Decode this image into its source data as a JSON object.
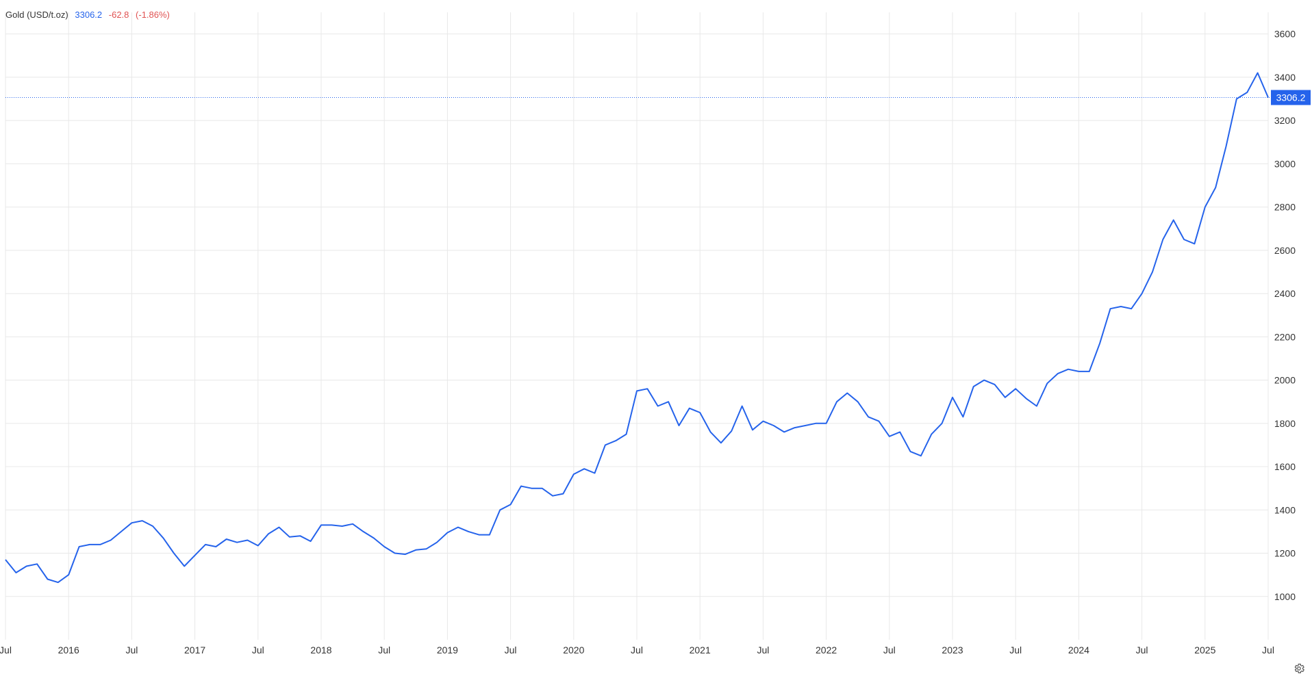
{
  "header": {
    "name": "Gold (USD/t.oz)",
    "price": "3306.2",
    "change": "-62.8",
    "change_pct": "(-1.86%)"
  },
  "colors": {
    "line": "#2563eb",
    "price": "#2563eb",
    "negative": "#e05252",
    "grid": "#e8e8e8",
    "axis_text": "#333333",
    "badge_bg": "#2563eb"
  },
  "icons": {
    "settings": "gear-icon"
  },
  "chart_data": {
    "type": "line",
    "title": "Gold (USD/t.oz)",
    "xlabel": "",
    "ylabel": "",
    "x_range": [
      "2015-07",
      "2025-07"
    ],
    "ylim": [
      800,
      3700
    ],
    "y_ticks": [
      "1000",
      "1200",
      "1400",
      "1600",
      "1800",
      "2000",
      "2200",
      "2400",
      "2600",
      "2800",
      "3000",
      "3200",
      "3400",
      "3600"
    ],
    "x_ticks": [
      {
        "date": "2015-07",
        "label": "Jul"
      },
      {
        "date": "2016-01",
        "label": "2016"
      },
      {
        "date": "2016-07",
        "label": "Jul"
      },
      {
        "date": "2017-01",
        "label": "2017"
      },
      {
        "date": "2017-07",
        "label": "Jul"
      },
      {
        "date": "2018-01",
        "label": "2018"
      },
      {
        "date": "2018-07",
        "label": "Jul"
      },
      {
        "date": "2019-01",
        "label": "2019"
      },
      {
        "date": "2019-07",
        "label": "Jul"
      },
      {
        "date": "2020-01",
        "label": "2020"
      },
      {
        "date": "2020-07",
        "label": "Jul"
      },
      {
        "date": "2021-01",
        "label": "2021"
      },
      {
        "date": "2021-07",
        "label": "Jul"
      },
      {
        "date": "2022-01",
        "label": "2022"
      },
      {
        "date": "2022-07",
        "label": "Jul"
      },
      {
        "date": "2023-01",
        "label": "2023"
      },
      {
        "date": "2023-07",
        "label": "Jul"
      },
      {
        "date": "2024-01",
        "label": "2024"
      },
      {
        "date": "2024-07",
        "label": "Jul"
      },
      {
        "date": "2025-01",
        "label": "2025"
      },
      {
        "date": "2025-07",
        "label": "Jul"
      }
    ],
    "grid": true,
    "last_value": 3306.2,
    "last_value_label": "3306.2",
    "series": [
      {
        "values": [
          [
            "2015-07",
            1170
          ],
          [
            "2015-08",
            1110
          ],
          [
            "2015-09",
            1140
          ],
          [
            "2015-10",
            1150
          ],
          [
            "2015-11",
            1080
          ],
          [
            "2015-12",
            1065
          ],
          [
            "2016-01",
            1100
          ],
          [
            "2016-02",
            1230
          ],
          [
            "2016-03",
            1240
          ],
          [
            "2016-04",
            1240
          ],
          [
            "2016-05",
            1260
          ],
          [
            "2016-06",
            1300
          ],
          [
            "2016-07",
            1340
          ],
          [
            "2016-08",
            1350
          ],
          [
            "2016-09",
            1325
          ],
          [
            "2016-10",
            1270
          ],
          [
            "2016-11",
            1200
          ],
          [
            "2016-12",
            1140
          ],
          [
            "2017-01",
            1190
          ],
          [
            "2017-02",
            1240
          ],
          [
            "2017-03",
            1230
          ],
          [
            "2017-04",
            1265
          ],
          [
            "2017-05",
            1250
          ],
          [
            "2017-06",
            1260
          ],
          [
            "2017-07",
            1235
          ],
          [
            "2017-08",
            1290
          ],
          [
            "2017-09",
            1320
          ],
          [
            "2017-10",
            1275
          ],
          [
            "2017-11",
            1280
          ],
          [
            "2017-12",
            1255
          ],
          [
            "2018-01",
            1330
          ],
          [
            "2018-02",
            1330
          ],
          [
            "2018-03",
            1325
          ],
          [
            "2018-04",
            1335
          ],
          [
            "2018-05",
            1300
          ],
          [
            "2018-06",
            1270
          ],
          [
            "2018-07",
            1230
          ],
          [
            "2018-08",
            1200
          ],
          [
            "2018-09",
            1195
          ],
          [
            "2018-10",
            1215
          ],
          [
            "2018-11",
            1220
          ],
          [
            "2018-12",
            1250
          ],
          [
            "2019-01",
            1295
          ],
          [
            "2019-02",
            1320
          ],
          [
            "2019-03",
            1300
          ],
          [
            "2019-04",
            1285
          ],
          [
            "2019-05",
            1285
          ],
          [
            "2019-06",
            1400
          ],
          [
            "2019-07",
            1425
          ],
          [
            "2019-08",
            1510
          ],
          [
            "2019-09",
            1500
          ],
          [
            "2019-10",
            1500
          ],
          [
            "2019-11",
            1465
          ],
          [
            "2019-12",
            1475
          ],
          [
            "2020-01",
            1565
          ],
          [
            "2020-02",
            1590
          ],
          [
            "2020-03",
            1570
          ],
          [
            "2020-04",
            1700
          ],
          [
            "2020-05",
            1720
          ],
          [
            "2020-06",
            1750
          ],
          [
            "2020-07",
            1950
          ],
          [
            "2020-08",
            1960
          ],
          [
            "2020-09",
            1880
          ],
          [
            "2020-10",
            1900
          ],
          [
            "2020-11",
            1790
          ],
          [
            "2020-12",
            1870
          ],
          [
            "2021-01",
            1850
          ],
          [
            "2021-02",
            1760
          ],
          [
            "2021-03",
            1710
          ],
          [
            "2021-04",
            1765
          ],
          [
            "2021-05",
            1880
          ],
          [
            "2021-06",
            1770
          ],
          [
            "2021-07",
            1810
          ],
          [
            "2021-08",
            1790
          ],
          [
            "2021-09",
            1760
          ],
          [
            "2021-10",
            1780
          ],
          [
            "2021-11",
            1790
          ],
          [
            "2021-12",
            1800
          ],
          [
            "2022-01",
            1800
          ],
          [
            "2022-02",
            1900
          ],
          [
            "2022-03",
            1940
          ],
          [
            "2022-04",
            1900
          ],
          [
            "2022-05",
            1830
          ],
          [
            "2022-06",
            1810
          ],
          [
            "2022-07",
            1740
          ],
          [
            "2022-08",
            1760
          ],
          [
            "2022-09",
            1670
          ],
          [
            "2022-10",
            1650
          ],
          [
            "2022-11",
            1750
          ],
          [
            "2022-12",
            1800
          ],
          [
            "2023-01",
            1920
          ],
          [
            "2023-02",
            1830
          ],
          [
            "2023-03",
            1970
          ],
          [
            "2023-04",
            2000
          ],
          [
            "2023-05",
            1980
          ],
          [
            "2023-06",
            1920
          ],
          [
            "2023-07",
            1960
          ],
          [
            "2023-08",
            1915
          ],
          [
            "2023-09",
            1880
          ],
          [
            "2023-10",
            1985
          ],
          [
            "2023-11",
            2030
          ],
          [
            "2023-12",
            2050
          ],
          [
            "2024-01",
            2040
          ],
          [
            "2024-02",
            2040
          ],
          [
            "2024-03",
            2170
          ],
          [
            "2024-04",
            2330
          ],
          [
            "2024-05",
            2340
          ],
          [
            "2024-06",
            2330
          ],
          [
            "2024-07",
            2400
          ],
          [
            "2024-08",
            2500
          ],
          [
            "2024-09",
            2650
          ],
          [
            "2024-10",
            2740
          ],
          [
            "2024-11",
            2650
          ],
          [
            "2024-12",
            2630
          ],
          [
            "2025-01",
            2800
          ],
          [
            "2025-02",
            2890
          ],
          [
            "2025-03",
            3080
          ],
          [
            "2025-04",
            3300
          ],
          [
            "2025-05",
            3330
          ],
          [
            "2025-06",
            3420
          ],
          [
            "2025-07",
            3306.2
          ]
        ]
      }
    ]
  }
}
